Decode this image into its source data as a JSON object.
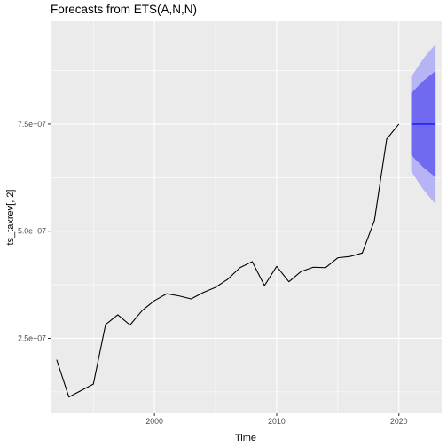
{
  "chart_data": {
    "type": "line",
    "title": "Forecasts from ETS(A,N,N)",
    "xlabel": "Time",
    "ylabel": "ts_taxrev[, 2]",
    "xlim": [
      1991.5,
      2023.5
    ],
    "ylim": [
      7500000,
      99000000
    ],
    "x_ticks": [
      2000,
      2010,
      2020
    ],
    "x_tick_labels": [
      "2000",
      "2010",
      "2020"
    ],
    "y_ticks": [
      25000000,
      50000000,
      75000000
    ],
    "y_tick_labels": [
      "2.5e+07",
      "5.0e+07",
      "7.5e+07"
    ],
    "grid": true,
    "colors": {
      "panel": "#ebebeb",
      "grid": "#ffffff",
      "series": "#000000",
      "forecast_line": "#0000ff",
      "pi80": "#6f6af0",
      "pi95": "#b6b4f4"
    },
    "series": [
      {
        "x": [
          1992,
          1993,
          1994,
          1995,
          1996,
          1997,
          1998,
          1999,
          2000,
          2001,
          2002,
          2003,
          2004,
          2005,
          2006,
          2007,
          2008,
          2009,
          2010,
          2011,
          2012,
          2013,
          2014,
          2015,
          2016,
          2017,
          2018,
          2019,
          2020
        ],
        "y": [
          20000000,
          11300000,
          12800000,
          14300000,
          28200000,
          30500000,
          28100000,
          31500000,
          33800000,
          35400000,
          34900000,
          34200000,
          35700000,
          36900000,
          38800000,
          41500000,
          42900000,
          37300000,
          41800000,
          38200000,
          40600000,
          41600000,
          41500000,
          43800000,
          44100000,
          44900000,
          52500000,
          71500000,
          75000000
        ]
      }
    ],
    "forecast": {
      "x": [
        2021,
        2022,
        2023
      ],
      "mean": [
        75000000,
        75000000,
        75000000
      ],
      "lo80": [
        67800000,
        64900000,
        62600000
      ],
      "hi80": [
        82200000,
        85100000,
        87400000
      ],
      "lo95": [
        64000000,
        59700000,
        56300000
      ],
      "hi95": [
        86000000,
        90300000,
        93700000
      ]
    }
  }
}
